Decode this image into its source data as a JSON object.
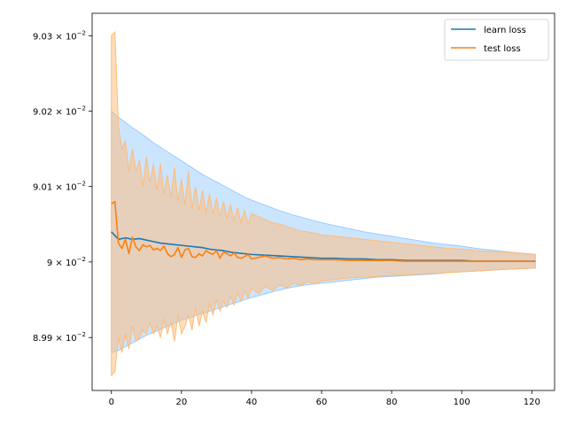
{
  "chart_data": {
    "type": "line",
    "title": "",
    "xlabel": "",
    "ylabel": "",
    "xlim": [
      -5.5,
      126.5
    ],
    "ylim": [
      0.08983,
      0.09033
    ],
    "xticks": [
      0,
      20,
      40,
      60,
      80,
      100,
      120
    ],
    "xtick_labels": [
      "0",
      "20",
      "40",
      "60",
      "80",
      "100",
      "120"
    ],
    "yticks": [
      0.0899,
      0.09,
      0.0901,
      0.0902,
      0.0903
    ],
    "ytick_labels": [
      {
        "mantissa": "8.99",
        "base": "10",
        "exp": "−2"
      },
      {
        "mantissa": "9",
        "base": "10",
        "exp": "−2"
      },
      {
        "mantissa": "9.01",
        "base": "10",
        "exp": "−2"
      },
      {
        "mantissa": "9.02",
        "base": "10",
        "exp": "−2"
      },
      {
        "mantissa": "9.03",
        "base": "10",
        "exp": "−2"
      }
    ],
    "y_scale": "log",
    "grid": false,
    "legend_position": "top-right",
    "series": [
      {
        "name": "learn loss",
        "color": "#1f77b4",
        "band_color": "#99ccff",
        "x": [
          0,
          2,
          4,
          6,
          8,
          10,
          12,
          14,
          16,
          18,
          20,
          22,
          24,
          26,
          28,
          30,
          32,
          34,
          36,
          38,
          40,
          44,
          48,
          52,
          56,
          60,
          64,
          68,
          72,
          76,
          80,
          84,
          88,
          92,
          96,
          100,
          104,
          108,
          112,
          116,
          121
        ],
        "y": [
          0.09004,
          0.09003,
          0.090032,
          0.09003,
          0.090031,
          0.090029,
          0.090027,
          0.090025,
          0.090024,
          0.090023,
          0.090022,
          0.090021,
          0.09002,
          0.090019,
          0.090017,
          0.090016,
          0.090015,
          0.090013,
          0.090012,
          0.090011,
          0.09001,
          0.090009,
          0.090008,
          0.090007,
          0.090006,
          0.090005,
          0.090005,
          0.090004,
          0.090004,
          0.090003,
          0.090003,
          0.090002,
          0.090002,
          0.090002,
          0.090002,
          0.090002,
          0.090001,
          0.090001,
          0.090001,
          0.090001,
          0.090001
        ],
        "lower": [
          0.08988,
          0.089883,
          0.089888,
          0.089893,
          0.089898,
          0.089903,
          0.089907,
          0.089911,
          0.089915,
          0.089919,
          0.089923,
          0.089926,
          0.089929,
          0.089932,
          0.089935,
          0.089938,
          0.089941,
          0.089944,
          0.089947,
          0.08995,
          0.089953,
          0.089958,
          0.089963,
          0.089967,
          0.08997,
          0.089972,
          0.089974,
          0.089976,
          0.089978,
          0.08998,
          0.089981,
          0.089982,
          0.089983,
          0.089984,
          0.089986,
          0.089987,
          0.089988,
          0.089989,
          0.08999,
          0.089991,
          0.089992
        ],
        "upper": [
          0.0902,
          0.090192,
          0.090185,
          0.090178,
          0.090172,
          0.090165,
          0.090158,
          0.090152,
          0.090146,
          0.09014,
          0.090134,
          0.090128,
          0.090122,
          0.090116,
          0.090111,
          0.090106,
          0.090101,
          0.090096,
          0.090091,
          0.090086,
          0.090082,
          0.090075,
          0.090068,
          0.090062,
          0.090057,
          0.090052,
          0.090048,
          0.090044,
          0.09004,
          0.090037,
          0.090034,
          0.090031,
          0.090028,
          0.090025,
          0.090023,
          0.090021,
          0.090018,
          0.090016,
          0.090014,
          0.090012,
          0.09001
        ]
      },
      {
        "name": "test loss",
        "color": "#ff7f0e",
        "band_color": "#ffbb77",
        "x": [
          0,
          1,
          2,
          3,
          4,
          5,
          6,
          7,
          8,
          9,
          10,
          11,
          12,
          13,
          14,
          15,
          16,
          17,
          18,
          19,
          20,
          21,
          22,
          23,
          24,
          25,
          26,
          27,
          28,
          29,
          30,
          31,
          32,
          33,
          34,
          35,
          36,
          37,
          38,
          39,
          40,
          42,
          44,
          46,
          48,
          50,
          52,
          54,
          56,
          58,
          60,
          64,
          68,
          72,
          76,
          80,
          84,
          88,
          92,
          96,
          100,
          104,
          108,
          112,
          116,
          121
        ],
        "y": [
          0.090077,
          0.09008,
          0.090025,
          0.090018,
          0.09003,
          0.090011,
          0.090033,
          0.09002,
          0.090015,
          0.090023,
          0.09002,
          0.090022,
          0.090016,
          0.090018,
          0.090015,
          0.090021,
          0.090011,
          0.090007,
          0.09001,
          0.090019,
          0.090006,
          0.090016,
          0.090018,
          0.090007,
          0.090006,
          0.090011,
          0.090008,
          0.090015,
          0.090012,
          0.09001,
          0.090015,
          0.090005,
          0.090013,
          0.090011,
          0.090008,
          0.090012,
          0.090006,
          0.090005,
          0.090007,
          0.09001,
          0.090004,
          0.090006,
          0.090008,
          0.090005,
          0.090006,
          0.090004,
          0.090005,
          0.090003,
          0.090004,
          0.090003,
          0.090003,
          0.090003,
          0.090002,
          0.090002,
          0.090002,
          0.090002,
          0.090001,
          0.090001,
          0.090001,
          0.090001,
          0.090001,
          0.090001,
          0.090001,
          0.090001,
          0.090001,
          0.090001
        ],
        "lower": [
          0.08985,
          0.089855,
          0.0899,
          0.08988,
          0.089905,
          0.089885,
          0.089915,
          0.089895,
          0.0899,
          0.08991,
          0.089905,
          0.08992,
          0.089905,
          0.089915,
          0.0899,
          0.089925,
          0.089905,
          0.08992,
          0.089895,
          0.08993,
          0.089905,
          0.089915,
          0.08993,
          0.08991,
          0.08994,
          0.089915,
          0.089935,
          0.08992,
          0.089945,
          0.08993,
          0.08995,
          0.089935,
          0.089948,
          0.08994,
          0.089955,
          0.089943,
          0.08996,
          0.089948,
          0.089962,
          0.089952,
          0.089965,
          0.089958,
          0.089968,
          0.089962,
          0.08997,
          0.089966,
          0.089972,
          0.089969,
          0.089974,
          0.089971,
          0.089975,
          0.089977,
          0.089979,
          0.08998,
          0.089981,
          0.089982,
          0.089983,
          0.089984,
          0.089985,
          0.089986,
          0.089987,
          0.089988,
          0.089989,
          0.08999,
          0.089991,
          0.089992
        ],
        "upper": [
          0.0903,
          0.090305,
          0.09018,
          0.09015,
          0.09016,
          0.09012,
          0.09015,
          0.09012,
          0.090135,
          0.0901,
          0.09014,
          0.090105,
          0.09013,
          0.090095,
          0.09013,
          0.09009,
          0.090115,
          0.090085,
          0.090125,
          0.09008,
          0.09011,
          0.090075,
          0.09012,
          0.09007,
          0.0901,
          0.090068,
          0.090095,
          0.090065,
          0.09009,
          0.090063,
          0.090085,
          0.09006,
          0.09008,
          0.090058,
          0.090076,
          0.090055,
          0.090072,
          0.090052,
          0.090068,
          0.09005,
          0.090064,
          0.09006,
          0.090056,
          0.090052,
          0.09005,
          0.090047,
          0.090044,
          0.090041,
          0.09004,
          0.090038,
          0.090036,
          0.090034,
          0.090032,
          0.09003,
          0.090028,
          0.090026,
          0.090024,
          0.090022,
          0.09002,
          0.090018,
          0.090017,
          0.090015,
          0.090014,
          0.090013,
          0.090012,
          0.09001
        ]
      }
    ]
  }
}
